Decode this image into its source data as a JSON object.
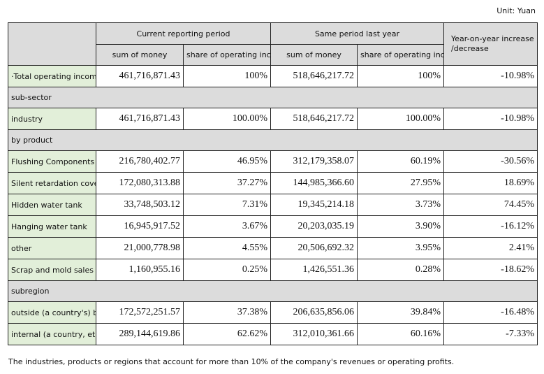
{
  "unit": "Unit: Yuan",
  "headers": {
    "current_period": "Current reporting period",
    "same_period_last_year": "Same period last year",
    "yoy": "Year-on-year increase /decrease",
    "sum_of_money": "sum of money",
    "share": "share of operating income"
  },
  "rows": [
    {
      "type": "data",
      "label": "·Total operating income",
      "cur_amount": "461,716,871.43",
      "cur_share": "100%",
      "last_amount": "518,646,217.72",
      "last_share": "100%",
      "yoy": "-10.98%"
    },
    {
      "type": "section",
      "label": "sub-sector"
    },
    {
      "type": "data",
      "label": "industry",
      "cur_amount": "461,716,871.43",
      "cur_share": "100.00%",
      "last_amount": "518,646,217.72",
      "last_share": "100.00%",
      "yoy": "-10.98%"
    },
    {
      "type": "section",
      "label": "by product"
    },
    {
      "type": "data",
      "label": "Flushing Components",
      "cur_amount": "216,780,402.77",
      "cur_share": "46.95%",
      "last_amount": "312,179,358.07",
      "last_share": "60.19%",
      "yoy": "-30.56%"
    },
    {
      "type": "data",
      "label": "Silent retardation cover",
      "cur_amount": "172,080,313.88",
      "cur_share": "37.27%",
      "last_amount": "144,985,366.60",
      "last_share": "27.95%",
      "yoy": "18.69%"
    },
    {
      "type": "data",
      "label": "Hidden water tank",
      "cur_amount": "33,748,503.12",
      "cur_share": "7.31%",
      "last_amount": "19,345,214.18",
      "last_share": "3.73%",
      "yoy": "74.45%"
    },
    {
      "type": "data",
      "label": "Hanging water tank",
      "cur_amount": "16,945,917.52",
      "cur_share": "3.67%",
      "last_amount": "20,203,035.19",
      "last_share": "3.90%",
      "yoy": "-16.12%"
    },
    {
      "type": "data",
      "label": "other",
      "cur_amount": "21,000,778.98",
      "cur_share": "4.55%",
      "last_amount": "20,506,692.32",
      "last_share": "3.95%",
      "yoy": "2.41%"
    },
    {
      "type": "data",
      "label": "Scrap and mold sales",
      "cur_amount": "1,160,955.16",
      "cur_share": "0.25%",
      "last_amount": "1,426,551.36",
      "last_share": "0.28%",
      "yoy": "-18.62%"
    },
    {
      "type": "section",
      "label": "subregion"
    },
    {
      "type": "data",
      "label": "outside (a country's) borders",
      "cur_amount": "172,572,251.57",
      "cur_share": "37.38%",
      "last_amount": "206,635,856.06",
      "last_share": "39.84%",
      "yoy": "-16.48%"
    },
    {
      "type": "data",
      "label": "internal (a country, etc.)",
      "cur_amount": "289,144,619.86",
      "cur_share": "62.62%",
      "last_amount": "312,010,361.66",
      "last_share": "60.16%",
      "yoy": "-7.33%"
    }
  ],
  "footnote": "The industries, products or regions that account for more than 10% of the company's revenues or operating profits."
}
